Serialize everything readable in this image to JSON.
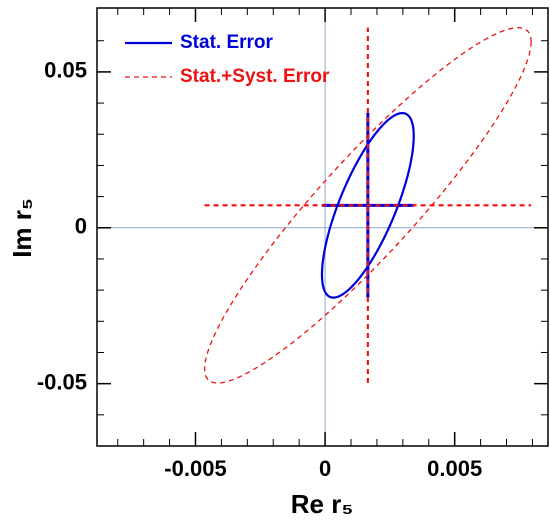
{
  "chart_data": {
    "type": "error_ellipse",
    "xlabel": "Re r₅",
    "ylabel": "Im r₅",
    "xlim": [
      -0.0088,
      0.0086
    ],
    "ylim": [
      -0.07,
      0.0705
    ],
    "xticks": [
      -0.005,
      0,
      0.005
    ],
    "yticks": [
      -0.05,
      0,
      0.05
    ],
    "xminorticks": [
      -0.008,
      -0.007,
      -0.006,
      -0.004,
      -0.003,
      -0.002,
      -0.001,
      0.001,
      0.002,
      0.003,
      0.004,
      0.006,
      0.007,
      0.008
    ],
    "yminorticks": [
      -0.06,
      -0.04,
      -0.03,
      -0.02,
      -0.01,
      0.01,
      0.02,
      0.03,
      0.04,
      0.06
    ],
    "zero_lines": true,
    "legend": "top-left",
    "series": [
      {
        "name": "Stat. Error",
        "color": "#0000dd",
        "line_style": "solid",
        "x": 0.00165,
        "y": 0.0072,
        "xerr": 0.00177,
        "yerr": 0.0296,
        "correlation": 0.75
      },
      {
        "name": "Stat.+Syst. Error",
        "color": "#ee1111",
        "line_style": "dashed",
        "x": 0.00165,
        "y": 0.0072,
        "xerr": 0.0063,
        "yerr": 0.057,
        "correlation": 0.92
      }
    ]
  }
}
